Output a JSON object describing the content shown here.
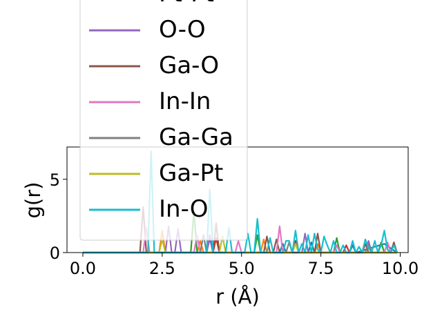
{
  "chart_data": {
    "type": "line",
    "title": "",
    "xlabel": "r (Å)",
    "ylabel": "g(r)",
    "xlim": [
      -0.5,
      10.25
    ],
    "ylim": [
      0,
      7.2
    ],
    "xticks": [
      0.0,
      2.5,
      5.0,
      7.5,
      10.0
    ],
    "xtick_labels": [
      "0.0",
      "2.5",
      "5.0",
      "7.5",
      "10.0"
    ],
    "yticks": [
      0,
      5
    ],
    "ytick_labels": [
      "0",
      "5"
    ],
    "legend_position": "upper-left (extends above plot area)",
    "series": [
      {
        "name": "",
        "color": "#1f77b4",
        "x": [
          0.0,
          3.9,
          4.0,
          4.1,
          6.2,
          6.3,
          6.4,
          7.1,
          7.2,
          7.3,
          8.4,
          8.5,
          8.6,
          9.5,
          9.9
        ],
        "y": [
          0,
          0,
          1.0,
          0,
          0,
          0.6,
          0,
          0,
          0.7,
          0,
          0,
          0.5,
          0,
          0.6,
          0
        ]
      },
      {
        "name": "",
        "color": "#ff7f0e",
        "x": [
          0.0,
          2.4,
          2.5,
          2.6,
          3.6,
          3.7,
          3.8,
          5.6,
          5.7,
          5.8,
          7.3,
          7.4,
          7.5,
          9.9
        ],
        "y": [
          0,
          0,
          1.5,
          0,
          0,
          0.8,
          0,
          0,
          0.9,
          0,
          0,
          0.6,
          0,
          0
        ]
      },
      {
        "name": "",
        "color": "#2ca02c",
        "x": [
          0.0,
          3.4,
          3.5,
          3.6,
          5.4,
          5.5,
          5.6,
          7.9,
          8.0,
          8.1,
          9.3,
          9.4,
          9.5,
          9.9
        ],
        "y": [
          0,
          0,
          2.8,
          0,
          0,
          1.2,
          0,
          0,
          1.0,
          0,
          0,
          0.7,
          0,
          0
        ]
      },
      {
        "name": "Pt-Pt",
        "color": "#d62728",
        "x": [
          0.0,
          4.1,
          4.2,
          4.3,
          6.6,
          6.7,
          6.8,
          8.2,
          8.3,
          8.4,
          9.9
        ],
        "y": [
          0,
          0,
          1.0,
          0,
          0,
          0.8,
          0,
          0,
          0.5,
          0,
          0
        ]
      },
      {
        "name": "O-O",
        "color": "#9467bd",
        "x": [
          0.0,
          2.6,
          2.7,
          2.8,
          2.9,
          3.0,
          3.1,
          3.2,
          3.9,
          4.0,
          4.1,
          6.9,
          7.0,
          7.1,
          7.2,
          8.9,
          9.0,
          9.1,
          9.9
        ],
        "y": [
          0,
          0,
          1.8,
          0,
          0,
          1.6,
          0,
          0,
          0,
          1.2,
          0,
          0,
          1.3,
          0,
          0,
          0,
          0.8,
          0,
          0
        ]
      },
      {
        "name": "Ga-O",
        "color": "#8c564b",
        "x": [
          0.0,
          1.8,
          1.9,
          2.0,
          4.1,
          4.2,
          4.3,
          5.7,
          5.8,
          5.9,
          6.0,
          6.1,
          6.2,
          7.3,
          7.4,
          7.5,
          8.8,
          8.9,
          9.0,
          9.7,
          9.8,
          9.9
        ],
        "y": [
          0,
          0,
          3.1,
          0,
          0,
          2.0,
          0,
          0,
          1.1,
          0,
          0,
          0.9,
          0,
          0,
          1.3,
          0,
          0,
          0.6,
          0,
          0,
          0.7,
          0
        ]
      },
      {
        "name": "In-In",
        "color": "#e377c2",
        "x": [
          0.0,
          1.9,
          2.0,
          2.1,
          3.5,
          3.6,
          3.7,
          4.8,
          4.9,
          5.0,
          6.1,
          6.2,
          6.3,
          7.9,
          8.0,
          8.1,
          9.5,
          9.6,
          9.7,
          9.9
        ],
        "y": [
          0,
          0,
          1.7,
          0,
          0,
          1.2,
          0,
          0,
          0.8,
          0,
          0,
          1.8,
          0,
          0,
          0.5,
          0,
          0,
          0.7,
          0,
          0
        ]
      },
      {
        "name": "Ga-Ga",
        "color": "#7f7f7f",
        "x": [
          0.0,
          3.7,
          3.8,
          3.9,
          6.4,
          6.5,
          6.6,
          8.9,
          9.0,
          9.1,
          9.9
        ],
        "y": [
          0,
          0,
          1.2,
          0,
          0,
          0.7,
          0,
          0,
          0.6,
          0,
          0
        ]
      },
      {
        "name": "Ga-Pt",
        "color": "#bcbd22",
        "x": [
          0.0,
          2.4,
          2.5,
          2.6,
          4.3,
          4.4,
          4.5,
          6.6,
          6.7,
          6.8,
          8.6,
          8.7,
          8.8,
          9.9
        ],
        "y": [
          0,
          0,
          0.9,
          0,
          0,
          1.1,
          0,
          0,
          0.6,
          0,
          0,
          0.4,
          0,
          0
        ]
      },
      {
        "name": "In-O",
        "color": "#17becf",
        "x": [
          0.0,
          2.05,
          2.15,
          2.25,
          3.9,
          4.0,
          4.1,
          4.5,
          4.6,
          4.7,
          5.1,
          5.2,
          5.3,
          5.4,
          5.5,
          5.6,
          5.8,
          5.9,
          6.0,
          6.3,
          6.4,
          6.5,
          6.6,
          6.7,
          6.8,
          6.9,
          7.0,
          7.1,
          7.2,
          7.3,
          7.4,
          7.5,
          7.6,
          7.7,
          7.8,
          7.9,
          8.0,
          8.1,
          8.2,
          8.3,
          8.4,
          8.5,
          8.6,
          8.7,
          8.8,
          8.9,
          9.0,
          9.1,
          9.2,
          9.3,
          9.4,
          9.5,
          9.6,
          9.7,
          9.8,
          9.9
        ],
        "y": [
          0,
          0,
          6.9,
          0,
          0,
          4.3,
          0,
          0,
          1.7,
          0,
          0,
          1.3,
          0,
          0,
          2.3,
          0,
          0,
          1.0,
          0,
          0,
          0.8,
          0.8,
          0,
          1.5,
          0,
          0.6,
          0,
          1.2,
          0,
          1.3,
          0.2,
          0,
          1.1,
          0.5,
          0,
          0.8,
          0,
          0,
          0.5,
          0,
          0,
          0.8,
          0,
          0.4,
          0,
          0.9,
          0.3,
          0,
          0.8,
          0,
          0.5,
          1.5,
          0.2,
          0,
          0.5,
          0
        ]
      }
    ]
  }
}
